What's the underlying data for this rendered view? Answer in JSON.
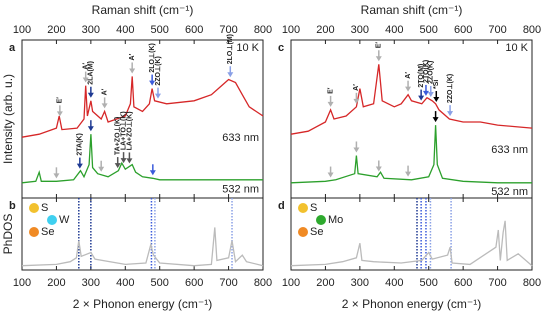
{
  "chart_data": [
    {
      "panel": "a",
      "type": "line",
      "xlabel": "Raman shift (cm⁻¹)",
      "ylabel": "Intensity (arb. u.)",
      "note": "10 K",
      "xlim": [
        100,
        800
      ],
      "xticks": [
        100,
        200,
        300,
        400,
        500,
        600,
        700,
        800
      ],
      "ylim": [
        0,
        100
      ],
      "series": [
        {
          "name": "633 nm",
          "color": "#d62728",
          "x": [
            100,
            150,
            200,
            208,
            216,
            260,
            280,
            285,
            290,
            300,
            305,
            330,
            340,
            350,
            400,
            415,
            420,
            425,
            450,
            470,
            478,
            485,
            520,
            600,
            650,
            680,
            700,
            720,
            740,
            760,
            800
          ],
          "values": [
            38,
            40,
            44,
            52,
            43,
            44,
            50,
            72,
            52,
            62,
            55,
            50,
            55,
            48,
            52,
            60,
            78,
            58,
            55,
            60,
            70,
            62,
            60,
            62,
            66,
            72,
            76,
            74,
            66,
            58,
            52
          ],
          "annotations": [
            {
              "text": "E′",
              "x": 210,
              "color": "#b0b0b0"
            },
            {
              "text": "A′",
              "x": 285,
              "color": "#b0b0b0"
            },
            {
              "text": "2LA(M)",
              "x": 300,
              "color": "#1f3a93"
            },
            {
              "text": "A′",
              "x": 340,
              "color": "#b0b0b0"
            },
            {
              "text": "A′",
              "x": 420,
              "color": "#b0b0b0"
            },
            {
              "text": "2LO⊥(K)",
              "x": 478,
              "color": "#3b5bdb"
            },
            {
              "text": "2ZO⊥(K)",
              "x": 495,
              "color": "#8aa0e6"
            },
            {
              "text": "2LO⊥(M)",
              "x": 705,
              "color": "#8aa0e6"
            }
          ]
        },
        {
          "name": "532 nm",
          "color": "#2ca02c",
          "x": [
            100,
            140,
            150,
            156,
            200,
            250,
            270,
            280,
            295,
            300,
            305,
            320,
            350,
            380,
            390,
            400,
            420,
            430,
            450,
            480,
            500,
            600,
            700,
            800
          ],
          "values": [
            8,
            9,
            15,
            9,
            9,
            10,
            16,
            12,
            20,
            40,
            18,
            14,
            12,
            16,
            21,
            17,
            20,
            15,
            12,
            11,
            10,
            10,
            10,
            10
          ],
          "annotations": [
            {
              "text": "2TA(K)",
              "x": 268,
              "color": "#1f3a93"
            },
            {
              "text": "TA+ZO⊥(K)",
              "x": 378,
              "color": "#555555"
            },
            {
              "text": "LA+TO⊥(K)",
              "x": 395,
              "color": "#555555"
            },
            {
              "text": "LA+ZO⊥(K)",
              "x": 412,
              "color": "#555555"
            }
          ],
          "arrows": [
            {
              "x": 200,
              "color": "#b0b0b0"
            },
            {
              "x": 300,
              "color": "#1f3a93"
            },
            {
              "x": 330,
              "color": "#b0b0b0"
            },
            {
              "x": 480,
              "color": "#3b5bdb"
            }
          ]
        }
      ]
    },
    {
      "panel": "b",
      "type": "line",
      "xlabel": "2 × Phonon energy (cm⁻¹)",
      "ylabel": "PhDOS",
      "xlim": [
        100,
        800
      ],
      "xticks": [
        100,
        200,
        300,
        400,
        500,
        600,
        700,
        800
      ],
      "ylim": [
        0,
        100
      ],
      "atoms": [
        {
          "label": "S",
          "color": "#f2c12e"
        },
        {
          "label": "W",
          "color": "#3fd0f0"
        },
        {
          "label": "Se",
          "color": "#f08a24"
        }
      ],
      "series": [
        {
          "color": "#bbbbbb",
          "x": [
            100,
            200,
            240,
            258,
            265,
            272,
            300,
            312,
            400,
            460,
            474,
            482,
            500,
            600,
            650,
            660,
            666,
            700,
            710,
            720,
            740,
            752,
            800
          ],
          "values": [
            2,
            4,
            8,
            14,
            40,
            16,
            22,
            12,
            4,
            6,
            34,
            18,
            6,
            2,
            4,
            60,
            10,
            14,
            40,
            8,
            18,
            8,
            2
          ]
        }
      ],
      "vlines": [
        {
          "x": 265,
          "color": "#1f3a93"
        },
        {
          "x": 300,
          "color": "#1f3a93"
        },
        {
          "x": 476,
          "color": "#3b5bdb"
        },
        {
          "x": 486,
          "color": "#8aa0e6"
        },
        {
          "x": 710,
          "color": "#8aa0e6"
        }
      ]
    },
    {
      "panel": "c",
      "type": "line",
      "xlabel": "Raman shift (cm⁻¹)",
      "note": "10 K",
      "xlim": [
        100,
        800
      ],
      "xticks": [
        100,
        200,
        300,
        400,
        500,
        600,
        700,
        800
      ],
      "ylim": [
        0,
        100
      ],
      "series": [
        {
          "name": "633 nm",
          "color": "#d62728",
          "x": [
            100,
            150,
            200,
            215,
            225,
            260,
            290,
            300,
            310,
            340,
            355,
            365,
            400,
            420,
            440,
            450,
            480,
            495,
            510,
            520,
            530,
            560,
            600,
            650,
            700,
            750,
            800
          ],
          "values": [
            40,
            42,
            48,
            56,
            50,
            52,
            58,
            70,
            58,
            60,
            86,
            62,
            58,
            60,
            66,
            62,
            60,
            64,
            62,
            60,
            56,
            50,
            48,
            48,
            46,
            45,
            44
          ],
          "annotations": [
            {
              "text": "E′",
              "x": 215,
              "color": "#b0b0b0"
            },
            {
              "text": "A′",
              "x": 290,
              "color": "#b0b0b0"
            },
            {
              "text": "E′",
              "x": 355,
              "color": "#b0b0b0"
            },
            {
              "text": "A′",
              "x": 440,
              "color": "#b0b0b0"
            },
            {
              "text": "2TO(M)",
              "x": 478,
              "color": "#1f3a93"
            },
            {
              "text": "2TO(K)",
              "x": 492,
              "color": "#3b5bdb"
            },
            {
              "text": "2ZO(K)",
              "x": 506,
              "color": "#8aa0e6"
            },
            {
              "text": "*Si",
              "x": 522,
              "color": "#000000"
            },
            {
              "text": "2ZO⊥(K)",
              "x": 562,
              "color": "#8aa0e6"
            }
          ]
        },
        {
          "name": "532 nm",
          "color": "#2ca02c",
          "x": [
            100,
            200,
            230,
            285,
            290,
            295,
            350,
            360,
            370,
            450,
            500,
            515,
            520,
            525,
            540,
            600,
            700,
            800
          ],
          "values": [
            8,
            9,
            10,
            14,
            26,
            14,
            12,
            15,
            11,
            10,
            12,
            20,
            46,
            20,
            11,
            9,
            8,
            8
          ],
          "arrows": [
            {
              "x": 215,
              "color": "#b0b0b0"
            },
            {
              "x": 290,
              "color": "#b0b0b0"
            },
            {
              "x": 355,
              "color": "#b0b0b0"
            },
            {
              "x": 440,
              "color": "#b0b0b0"
            },
            {
              "x": 520,
              "color": "#000000"
            }
          ]
        }
      ]
    },
    {
      "panel": "d",
      "type": "line",
      "xlabel": "2 × Phonon energy (cm⁻¹)",
      "xlim": [
        100,
        800
      ],
      "xticks": [
        100,
        200,
        300,
        400,
        500,
        600,
        700,
        800
      ],
      "ylim": [
        0,
        100
      ],
      "atoms": [
        {
          "label": "S",
          "color": "#f2c12e"
        },
        {
          "label": "Mo",
          "color": "#2eaa2e"
        },
        {
          "label": "Se",
          "color": "#f08a24"
        }
      ],
      "series": [
        {
          "color": "#bbbbbb",
          "x": [
            100,
            200,
            250,
            290,
            300,
            306,
            340,
            420,
            480,
            500,
            510,
            555,
            562,
            568,
            620,
            695,
            702,
            708,
            716,
            722,
            728,
            760,
            800
          ],
          "values": [
            2,
            4,
            8,
            14,
            36,
            10,
            8,
            6,
            10,
            22,
            12,
            18,
            30,
            6,
            4,
            30,
            56,
            10,
            52,
            70,
            10,
            20,
            2
          ]
        }
      ],
      "vlines": [
        {
          "x": 466,
          "color": "#1f3a93"
        },
        {
          "x": 478,
          "color": "#3b5bdb"
        },
        {
          "x": 492,
          "color": "#3b5bdb"
        },
        {
          "x": 505,
          "color": "#8aa0e6"
        },
        {
          "x": 565,
          "color": "#8aa0e6"
        }
      ]
    }
  ]
}
